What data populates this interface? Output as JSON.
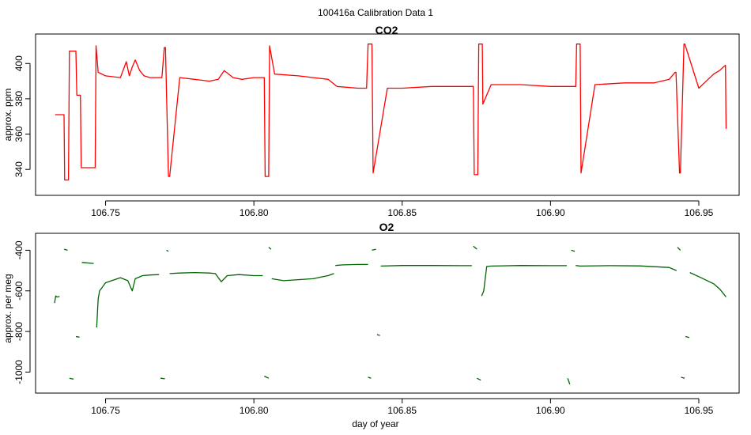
{
  "title": "100416a   Calibration Data 1",
  "colors": {
    "co2": "#ff0000",
    "o2": "#006400",
    "axis": "#000000"
  },
  "chart_data": [
    {
      "type": "line",
      "title": "CO2",
      "ylabel": "approx. ppm",
      "xlabel": "",
      "xlim": [
        106.728,
        106.962
      ],
      "ylim": [
        328,
        414
      ],
      "xticks": [
        106.75,
        106.8,
        106.85,
        106.9,
        106.95
      ],
      "xtick_labels": [
        "106.75",
        "106.80",
        "106.85",
        "106.90",
        "106.95"
      ],
      "yticks": [
        340,
        360,
        380,
        400
      ],
      "ytick_labels": [
        "340",
        "360",
        "380",
        "400"
      ],
      "grid": false,
      "series": [
        {
          "x": [
            106.733,
            106.736,
            106.7362,
            106.7375,
            106.7378,
            106.74,
            106.7403,
            106.7415,
            106.7418,
            106.7465,
            106.7468,
            106.7475,
            106.75,
            106.755,
            106.757,
            106.758,
            106.759,
            106.76,
            106.7615,
            106.763,
            106.765,
            106.769,
            106.7698,
            106.7702,
            106.7712,
            106.7716,
            106.775,
            106.78,
            106.785,
            106.788,
            106.79,
            106.793,
            106.796,
            106.8,
            106.8035,
            106.8038,
            106.805,
            106.8053,
            106.807,
            106.815,
            106.82,
            106.825,
            106.828,
            106.835,
            106.838,
            106.8385,
            106.8398,
            106.8402,
            106.845,
            106.85,
            106.86,
            106.87,
            106.874,
            106.8743,
            106.8755,
            106.8758,
            106.877,
            106.8772,
            106.88,
            106.89,
            106.9,
            106.9085,
            106.9088,
            106.91,
            106.9103,
            106.915,
            106.925,
            106.935,
            106.94,
            106.942,
            106.9423,
            106.9435,
            106.9438,
            106.945,
            106.9453,
            106.95,
            106.955,
            106.957,
            106.959,
            106.9592
          ],
          "y": [
            371,
            371,
            334,
            334,
            407,
            407,
            382,
            382,
            341,
            341,
            410,
            395,
            393,
            392,
            401,
            393,
            398,
            402,
            396,
            393,
            392,
            392,
            409,
            409,
            336,
            336,
            392,
            391,
            390,
            391,
            396,
            392,
            391,
            392,
            392,
            336,
            336,
            410,
            394,
            393,
            392,
            391,
            387,
            386,
            386,
            411,
            411,
            338,
            386,
            386,
            387,
            387,
            387,
            337,
            337,
            411,
            411,
            377,
            388,
            388,
            387,
            387,
            411,
            411,
            338,
            388,
            389,
            389,
            391,
            395,
            395,
            338,
            338,
            411,
            411,
            386,
            394,
            396,
            399,
            363
          ]
        }
      ]
    },
    {
      "type": "line",
      "title": "O2",
      "ylabel": "approx. per meg",
      "xlabel": "day of year",
      "xlim": [
        106.728,
        106.962
      ],
      "ylim": [
        -1080,
        -340
      ],
      "xticks": [
        106.75,
        106.8,
        106.85,
        106.9,
        106.95
      ],
      "xtick_labels": [
        "106.75",
        "106.80",
        "106.85",
        "106.90",
        "106.95"
      ],
      "yticks": [
        -1000,
        -800,
        -600,
        -400
      ],
      "ytick_labels": [
        "-1000",
        "-800",
        "-600",
        "-400"
      ],
      "grid": false,
      "segments": [
        {
          "x": [
            106.7328,
            106.7332,
            106.7336,
            106.7345
          ],
          "y": [
            -660,
            -625,
            -630,
            -628
          ]
        },
        {
          "x": [
            106.736,
            106.7372
          ],
          "y": [
            -395,
            -400
          ]
        },
        {
          "x": [
            106.7378,
            106.7392
          ],
          "y": [
            -1030,
            -1035
          ]
        },
        {
          "x": [
            106.74,
            106.7412
          ],
          "y": [
            -825,
            -828
          ]
        },
        {
          "x": [
            106.742,
            106.746
          ],
          "y": [
            -460,
            -465
          ]
        },
        {
          "x": [
            106.747,
            106.7475,
            106.748,
            106.75,
            106.755,
            106.7575,
            106.759,
            106.76,
            106.7625,
            106.765,
            106.768
          ],
          "y": [
            -780,
            -640,
            -600,
            -560,
            -535,
            -550,
            -600,
            -540,
            -525,
            -522,
            -520
          ]
        },
        {
          "x": [
            106.7685,
            106.77
          ],
          "y": [
            -1030,
            -1033
          ]
        },
        {
          "x": [
            106.7705,
            106.7712
          ],
          "y": [
            -400,
            -405
          ]
        },
        {
          "x": [
            106.7716,
            106.775,
            106.78,
            106.785,
            106.787,
            106.789,
            106.791,
            106.795,
            106.8,
            106.803
          ],
          "y": [
            -515,
            -512,
            -510,
            -512,
            -515,
            -555,
            -525,
            -520,
            -525,
            -525
          ]
        },
        {
          "x": [
            106.8035,
            106.805
          ],
          "y": [
            -1020,
            -1030
          ]
        },
        {
          "x": [
            106.805,
            106.8058
          ],
          "y": [
            -385,
            -395
          ]
        },
        {
          "x": [
            106.806,
            106.81,
            106.815,
            106.82,
            106.825,
            106.827
          ],
          "y": [
            -540,
            -550,
            -545,
            -540,
            -525,
            -515
          ]
        },
        {
          "x": [
            106.8275,
            106.83,
            106.835,
            106.8385
          ],
          "y": [
            -475,
            -472,
            -470,
            -470
          ]
        },
        {
          "x": [
            106.8385,
            106.8395
          ],
          "y": [
            -1025,
            -1030
          ]
        },
        {
          "x": [
            106.8398,
            106.8412
          ],
          "y": [
            -400,
            -395
          ]
        },
        {
          "x": [
            106.8415,
            106.8425
          ],
          "y": [
            -815,
            -820
          ]
        },
        {
          "x": [
            106.8428,
            106.85,
            106.86,
            106.87,
            106.8735
          ],
          "y": [
            -478,
            -475,
            -475,
            -476,
            -476
          ]
        },
        {
          "x": [
            106.874,
            106.8752
          ],
          "y": [
            -380,
            -395
          ]
        },
        {
          "x": [
            106.8752,
            106.8765
          ],
          "y": [
            -1030,
            -1040
          ]
        },
        {
          "x": [
            106.8768,
            106.8775,
            106.8785,
            106.88,
            106.89,
            106.9,
            106.9055
          ],
          "y": [
            -625,
            -600,
            -480,
            -478,
            -475,
            -476,
            -476
          ]
        },
        {
          "x": [
            106.9058,
            106.9065
          ],
          "y": [
            -1030,
            -1060
          ]
        },
        {
          "x": [
            106.907,
            106.9082
          ],
          "y": [
            -400,
            -405
          ]
        },
        {
          "x": [
            106.9085,
            106.91,
            106.92,
            106.93,
            106.94,
            106.9425
          ],
          "y": [
            -475,
            -478,
            -476,
            -477,
            -485,
            -500
          ]
        },
        {
          "x": [
            106.9428,
            106.9438
          ],
          "y": [
            -385,
            -400
          ]
        },
        {
          "x": [
            106.944,
            106.9452
          ],
          "y": [
            -1025,
            -1030
          ]
        },
        {
          "x": [
            106.9455,
            106.9468
          ],
          "y": [
            -825,
            -830
          ]
        },
        {
          "x": [
            106.947,
            106.95,
            106.955,
            106.957,
            106.9592
          ],
          "y": [
            -510,
            -530,
            -565,
            -590,
            -630
          ]
        }
      ]
    }
  ]
}
